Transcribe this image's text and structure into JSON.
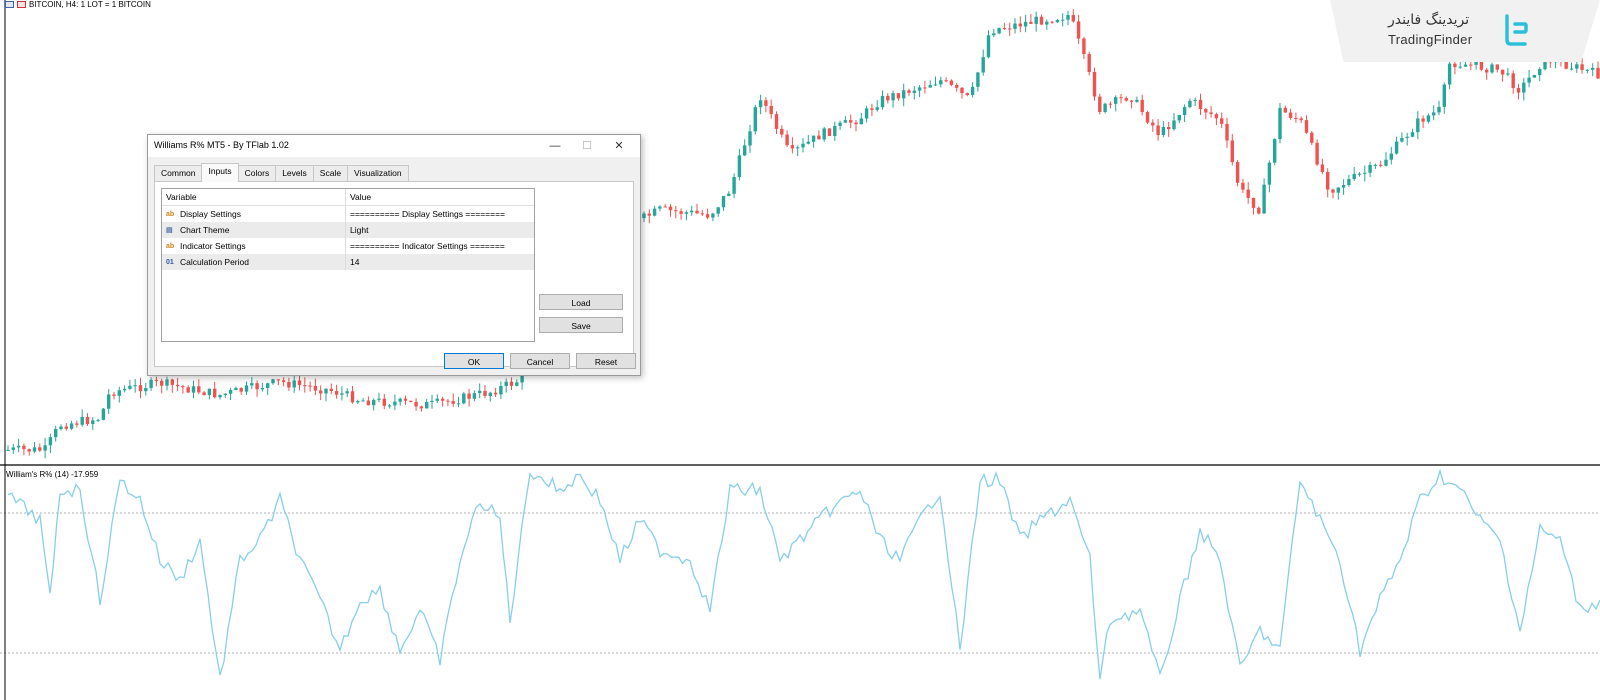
{
  "chart": {
    "symbol_label": "BITCOIN, H4:  1 LOT = 1 BITCOIN",
    "indicator_label": "William's R% (14) -17.959",
    "colors": {
      "bull": "#26a69a",
      "bear": "#ef5350",
      "line": "#87ceeb",
      "level": "#b0b0b0",
      "separator": "#606060"
    },
    "icons": [
      "symbol-icon",
      "chart-icon"
    ]
  },
  "logo": {
    "text_fa": "تریدینگ فایندر",
    "text_en": "TradingFinder",
    "icon": "tradingfinder-logo-icon",
    "color": "#2bbfd8"
  },
  "dialog": {
    "title": "Williams R% MT5 - By TFlab 1.02",
    "window_buttons": {
      "minimize": "—",
      "maximize": "☐",
      "close": "✕"
    },
    "tabs": [
      {
        "label": "Common"
      },
      {
        "label": "Inputs"
      },
      {
        "label": "Colors"
      },
      {
        "label": "Levels"
      },
      {
        "label": "Scale"
      },
      {
        "label": "Visualization"
      }
    ],
    "active_tab": "Inputs",
    "columns": {
      "variable": "Variable",
      "value": "Value"
    },
    "rows": [
      {
        "icon": "ab",
        "variable": "Display Settings",
        "value": "========== Display Settings ========"
      },
      {
        "icon": "▤",
        "variable": "Chart Theme",
        "value": "Light"
      },
      {
        "icon": "ab",
        "variable": "Indicator Settings",
        "value": "========== Indicator Settings ======="
      },
      {
        "icon": "01",
        "variable": "Calculation Period",
        "value": "14"
      }
    ],
    "buttons": {
      "load": "Load",
      "save": "Save",
      "ok": "OK",
      "cancel": "Cancel",
      "reset": "Reset"
    }
  }
}
